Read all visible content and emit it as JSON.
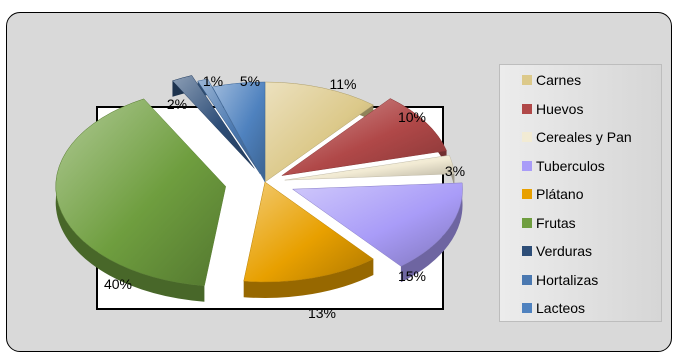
{
  "chart_data": {
    "type": "pie",
    "title": "",
    "slices": [
      {
        "label": "Carnes",
        "value": 11,
        "value_label": "11%",
        "color": "#dcc98a"
      },
      {
        "label": "Huevos",
        "value": 10,
        "value_label": "10%",
        "color": "#b04848"
      },
      {
        "label": "Cereales y Pan",
        "value": 3,
        "value_label": "3%",
        "color": "#f2ebd4"
      },
      {
        "label": "Tuberculos",
        "value": 15,
        "value_label": "15%",
        "color": "#a99cf8"
      },
      {
        "label": "Plátano",
        "value": 13,
        "value_label": "13%",
        "color": "#e8a000"
      },
      {
        "label": "Frutas",
        "value": 40,
        "value_label": "40%",
        "color": "#6f9e3f"
      },
      {
        "label": "Verduras",
        "value": 2,
        "value_label": "2%",
        "color": "#2e4e78"
      },
      {
        "label": "Hortalizas",
        "value": 1,
        "value_label": "1%",
        "color": "#4a78b0"
      },
      {
        "label": "Lacteos",
        "value": 5,
        "value_label": "5%",
        "color": "#4f82bf"
      }
    ],
    "legend_position": "right",
    "exploded": true,
    "style": "3d"
  }
}
